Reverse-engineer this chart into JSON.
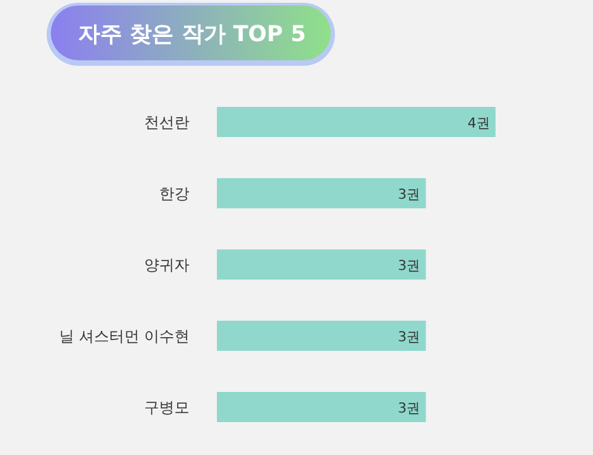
{
  "chart_data": {
    "type": "bar",
    "orientation": "horizontal",
    "title": "자주 찾은 작가 TOP 5",
    "categories": [
      "천선란",
      "한강",
      "양귀자",
      "닐 셔스터먼 이수현",
      "구병모"
    ],
    "values": [
      4,
      3,
      3,
      3,
      3
    ],
    "value_labels": [
      "4권",
      "3권",
      "3권",
      "3권",
      "3권"
    ],
    "color": "#90d8cc"
  }
}
